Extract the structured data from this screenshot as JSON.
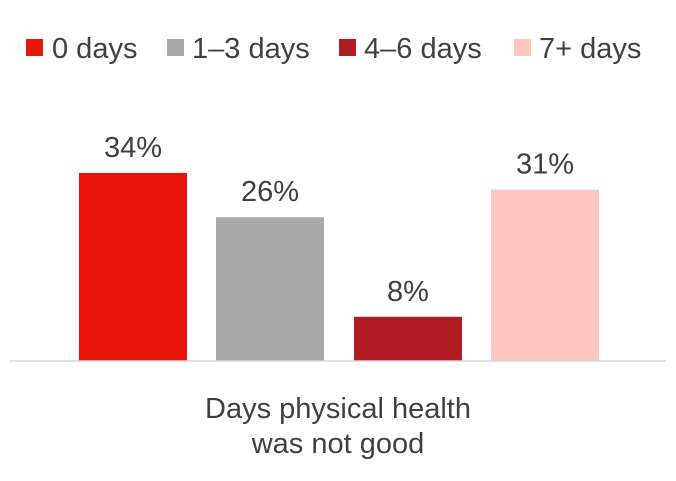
{
  "chart_data": {
    "type": "bar",
    "categories": [
      "0 days",
      "1–3 days",
      "4–6 days",
      "7+ days"
    ],
    "values": [
      34,
      26,
      8,
      31
    ],
    "data_labels": [
      "34%",
      "26%",
      "8%",
      "31%"
    ],
    "colors": [
      "#e8160a",
      "#a9a9a9",
      "#b01c24",
      "#fdc6c0"
    ],
    "xlabel": "Days physical health\nwas not good",
    "ylim": [
      0,
      40
    ],
    "grid": false,
    "legend": {
      "position": "top",
      "entries": [
        "0 days",
        "1–3 days",
        "4–6 days",
        "7+ days"
      ]
    }
  }
}
